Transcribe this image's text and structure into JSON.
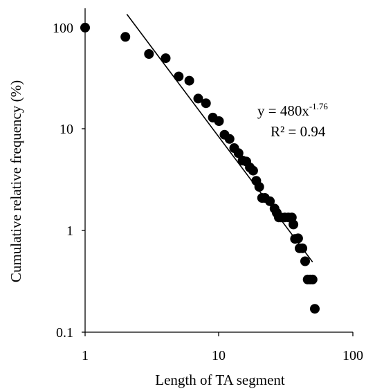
{
  "chart_data": {
    "type": "scatter",
    "title": "",
    "xlabel": "Length of TA segment",
    "ylabel": "Cumulative relative frequency  (%)",
    "xscale": "log",
    "yscale": "log",
    "xlim": [
      1,
      100
    ],
    "ylim": [
      0.1,
      100
    ],
    "xticks": [
      "1",
      "10",
      "100"
    ],
    "yticks": [
      "0.1",
      "1",
      "10",
      "100"
    ],
    "grid": false,
    "legend": "none",
    "point_color": "#000000",
    "series": [
      {
        "x": [
          1,
          2,
          3,
          4,
          5,
          6,
          7,
          8,
          9,
          10,
          11,
          12,
          13,
          14,
          15,
          16,
          17,
          18,
          19,
          20,
          21,
          22,
          24,
          26,
          27,
          28,
          29,
          31,
          33,
          35,
          36,
          37,
          39,
          40,
          42,
          44,
          46,
          48,
          50,
          52
        ],
        "y": [
          100,
          81,
          55,
          50,
          33,
          30,
          20,
          18,
          13,
          12,
          8.8,
          8,
          6.5,
          5.8,
          4.9,
          4.8,
          4.2,
          3.9,
          3.1,
          2.7,
          2.1,
          2.1,
          1.95,
          1.65,
          1.5,
          1.35,
          1.35,
          1.35,
          1.35,
          1.35,
          1.15,
          0.83,
          0.84,
          0.67,
          0.67,
          0.5,
          0.33,
          0.33,
          0.33,
          0.17
        ]
      }
    ],
    "trendline": {
      "type": "power",
      "a": 480,
      "b": -1.76,
      "equation_prefix": "y = 480x",
      "equation_exponent": "-1.76",
      "r2_text": "R² = 0.94",
      "x_range": [
        2.05,
        50
      ]
    }
  }
}
